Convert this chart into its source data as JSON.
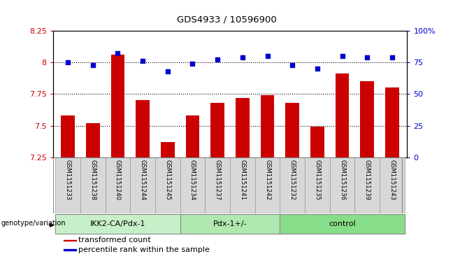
{
  "title": "GDS4933 / 10596900",
  "samples": [
    "GSM1151233",
    "GSM1151238",
    "GSM1151240",
    "GSM1151244",
    "GSM1151245",
    "GSM1151234",
    "GSM1151237",
    "GSM1151241",
    "GSM1151242",
    "GSM1151232",
    "GSM1151235",
    "GSM1151236",
    "GSM1151239",
    "GSM1151243"
  ],
  "bar_values": [
    7.58,
    7.52,
    8.06,
    7.7,
    7.37,
    7.58,
    7.68,
    7.72,
    7.74,
    7.68,
    7.49,
    7.91,
    7.85,
    7.8
  ],
  "dot_values": [
    75,
    73,
    82,
    76,
    68,
    74,
    77,
    79,
    80,
    73,
    70,
    80,
    79,
    79
  ],
  "bar_color": "#cc0000",
  "dot_color": "#0000cc",
  "ylim_left": [
    7.25,
    8.25
  ],
  "ylim_right": [
    0,
    100
  ],
  "yticks_left": [
    7.25,
    7.5,
    7.75,
    8.0,
    8.25
  ],
  "yticks_right": [
    0,
    25,
    50,
    75,
    100
  ],
  "ytick_labels_left": [
    "7.25",
    "7.5",
    "7.75",
    "8",
    "8.25"
  ],
  "ytick_labels_right": [
    "0",
    "25",
    "50",
    "75",
    "100%"
  ],
  "hlines": [
    7.5,
    7.75,
    8.0
  ],
  "groups": [
    {
      "label": "IKK2-CA/Pdx-1",
      "start": 0,
      "end": 5,
      "color": "#c8f0c8"
    },
    {
      "label": "Pdx-1+/-",
      "start": 5,
      "end": 9,
      "color": "#b0e8b0"
    },
    {
      "label": "control",
      "start": 9,
      "end": 14,
      "color": "#88dd88"
    }
  ],
  "group_label_prefix": "genotype/variation",
  "legend_items": [
    {
      "color": "#cc0000",
      "label": "transformed count"
    },
    {
      "color": "#0000cc",
      "label": "percentile rank within the sample"
    }
  ],
  "bg_color": "#d8d8d8",
  "plot_bg": "#ffffff"
}
